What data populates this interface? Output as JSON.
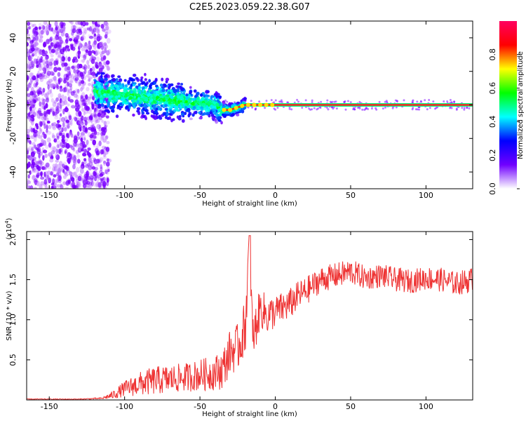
{
  "figure": {
    "title": "C2E5.2023.059.22.38.G07"
  },
  "colorbar": {
    "label": "Normalized spectral amplitude",
    "ticks": [
      "0.0",
      "0.2",
      "0.4",
      "0.6",
      "0.8"
    ],
    "tick_values": [
      0.0,
      0.2,
      0.4,
      0.6,
      0.8
    ],
    "range": [
      0,
      1
    ],
    "colormap": [
      "#ffffff",
      "#7000ff",
      "#0000ff",
      "#00ffff",
      "#00ff00",
      "#ffff00",
      "#ff0000",
      "#ff0060"
    ]
  },
  "chart_data": [
    {
      "type": "heatmap",
      "xlabel": "Height of straight line (km)",
      "ylabel": "Frequency (Hz)",
      "xlim": [
        -165,
        131
      ],
      "ylim": [
        -50,
        50
      ],
      "xticks": [
        -150,
        -100,
        -50,
        0,
        50,
        100
      ],
      "yticks": [
        -40,
        -20,
        0,
        20,
        40
      ],
      "ridge": {
        "description_free": true,
        "x": [
          -120,
          -110,
          -100,
          -90,
          -80,
          -70,
          -60,
          -50,
          -40,
          -35,
          -30,
          -20,
          -10,
          0,
          10,
          50,
          100,
          130
        ],
        "y": [
          8,
          7,
          6,
          5,
          4,
          3,
          2,
          1,
          0,
          -3,
          -3,
          0,
          0,
          0,
          0,
          0,
          0,
          0
        ]
      },
      "colors": {
        "line": "#ff2020",
        "scatter": "#7a00ff"
      }
    },
    {
      "type": "line",
      "xlabel": "Height of straight line (km)",
      "ylabel": "SNR (10 * v/v)",
      "scale_label": "(x10",
      "scale_exponent": "4",
      "scale_close": ")",
      "xlim": [
        -165,
        131
      ],
      "ylim": [
        0,
        2.1
      ],
      "xticks": [
        -150,
        -100,
        -50,
        0,
        50,
        100
      ],
      "yticks": [
        0.5,
        1.0,
        1.5,
        2.0
      ],
      "ytick_labels": [
        "0.5",
        "1.0",
        "1.5",
        "2.0"
      ],
      "series": [
        {
          "color": "#ee3333",
          "x": [
            -165,
            -130,
            -115,
            -108,
            -100,
            -90,
            -80,
            -70,
            -60,
            -50,
            -40,
            -35,
            -30,
            -25,
            -20,
            -17,
            -15,
            -10,
            -5,
            0,
            5,
            10,
            15,
            20,
            30,
            40,
            50,
            60,
            70,
            80,
            90,
            100,
            110,
            120,
            131
          ],
          "y": [
            0.01,
            0.01,
            0.02,
            0.06,
            0.14,
            0.2,
            0.24,
            0.26,
            0.28,
            0.31,
            0.34,
            0.38,
            0.6,
            0.65,
            0.9,
            2.05,
            0.75,
            1.15,
            1.05,
            1.1,
            1.15,
            1.2,
            1.3,
            1.35,
            1.5,
            1.55,
            1.6,
            1.52,
            1.55,
            1.5,
            1.48,
            1.52,
            1.5,
            1.45,
            1.5
          ],
          "noise": [
            0.005,
            0.005,
            0.01,
            0.05,
            0.1,
            0.15,
            0.18,
            0.18,
            0.18,
            0.2,
            0.22,
            0.25,
            0.28,
            0.3,
            0.35,
            0.3,
            0.3,
            0.25,
            0.25,
            0.2,
            0.2,
            0.2,
            0.18,
            0.18,
            0.16,
            0.16,
            0.16,
            0.15,
            0.15,
            0.15,
            0.15,
            0.15,
            0.15,
            0.15,
            0.16
          ]
        }
      ]
    }
  ]
}
